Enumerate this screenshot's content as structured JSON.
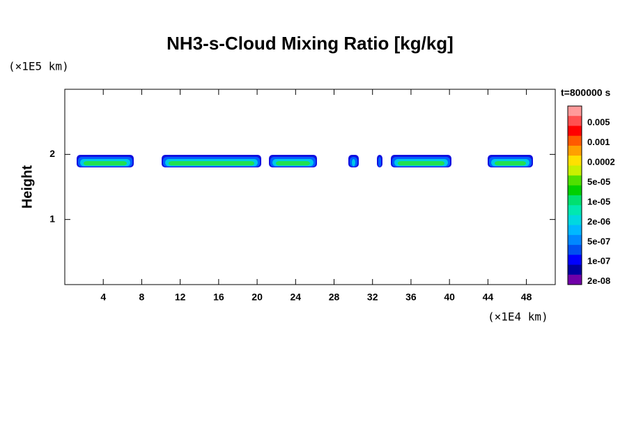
{
  "chart_data": {
    "type": "contour",
    "title": "NH3-s-Cloud Mixing Ratio [kg/kg]",
    "y_label": "Height",
    "y_unit": "(×1E5 km)",
    "x_unit": "(×1E4 km)",
    "time_label": "t=800000 s",
    "xlim": [
      0,
      51
    ],
    "xticks": [
      4,
      8,
      12,
      16,
      20,
      24,
      28,
      32,
      36,
      40,
      44,
      48
    ],
    "ylim": [
      0,
      3
    ],
    "yticks": [
      1,
      2
    ],
    "colorbar_labels": [
      "0.005",
      "0.001",
      "0.0002",
      "5e-05",
      "1e-05",
      "2e-06",
      "5e-07",
      "1e-07",
      "2e-08"
    ],
    "colorbar_colors": [
      "#ff9a9a",
      "#ff5050",
      "#ff0000",
      "#ff5a00",
      "#ffa000",
      "#ffe000",
      "#c8f000",
      "#50e000",
      "#00d000",
      "#00e070",
      "#00e8b0",
      "#00d8e0",
      "#00b8ff",
      "#0088ff",
      "#0050f0",
      "#0000ff",
      "#0000a0",
      "#7000a8"
    ]
  }
}
